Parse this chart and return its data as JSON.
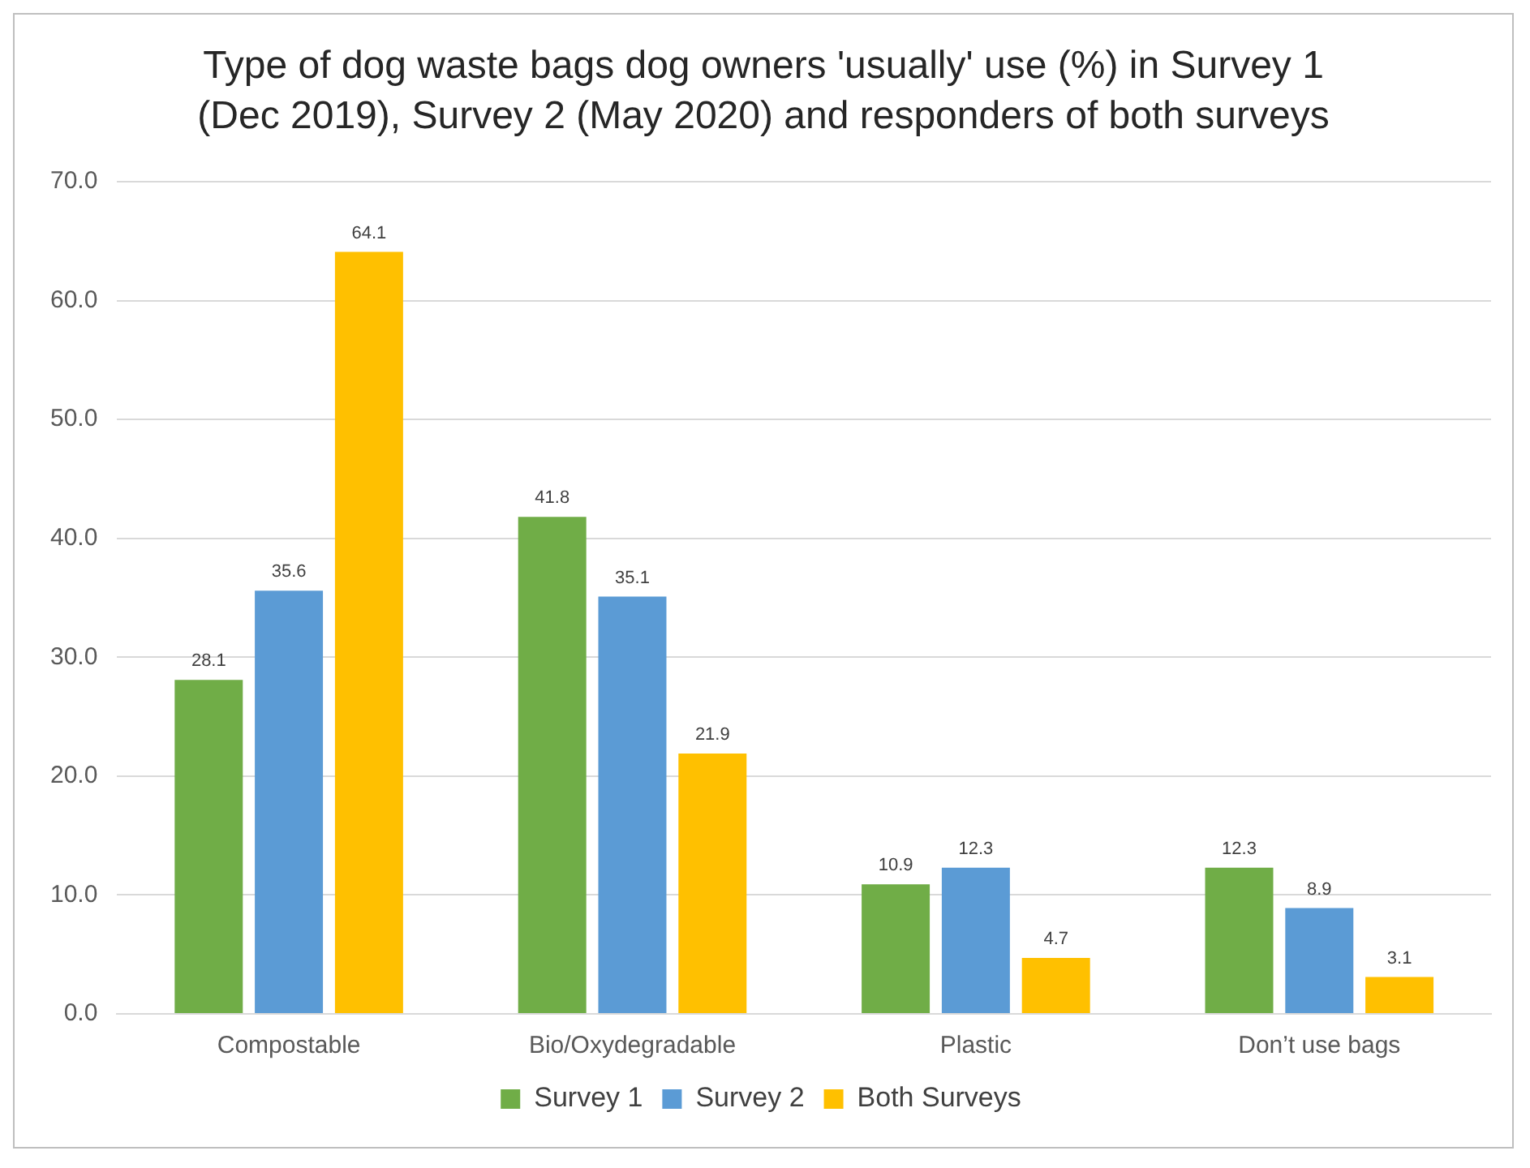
{
  "chart_data": {
    "type": "bar",
    "title": "Type of dog waste bags dog owners 'usually' use (%) in Survey 1 (Dec 2019), Survey 2 (May 2020) and responders of both surveys",
    "categories": [
      "Compostable",
      "Bio/Oxydegradable",
      "Plastic",
      "Don’t use bags"
    ],
    "series": [
      {
        "name": "Survey 1",
        "color": "#70ad47",
        "values": [
          28.1,
          41.8,
          10.9,
          12.3
        ]
      },
      {
        "name": "Survey 2",
        "color": "#5b9bd5",
        "values": [
          35.6,
          35.1,
          12.3,
          8.9
        ]
      },
      {
        "name": "Both Surveys",
        "color": "#ffc000",
        "values": [
          64.1,
          21.9,
          4.7,
          3.1
        ]
      }
    ],
    "ylim": [
      0,
      70
    ],
    "yticks": [
      {
        "value": 0,
        "label": "0.0"
      },
      {
        "value": 10,
        "label": "10.0"
      },
      {
        "value": 20,
        "label": "20.0"
      },
      {
        "value": 30,
        "label": "30.0"
      },
      {
        "value": 40,
        "label": "40.0"
      },
      {
        "value": 50,
        "label": "50.0"
      },
      {
        "value": 60,
        "label": "60.0"
      },
      {
        "value": 70,
        "label": "70.0"
      }
    ],
    "grid": "y",
    "legend": "bottom",
    "data_labels": true
  }
}
